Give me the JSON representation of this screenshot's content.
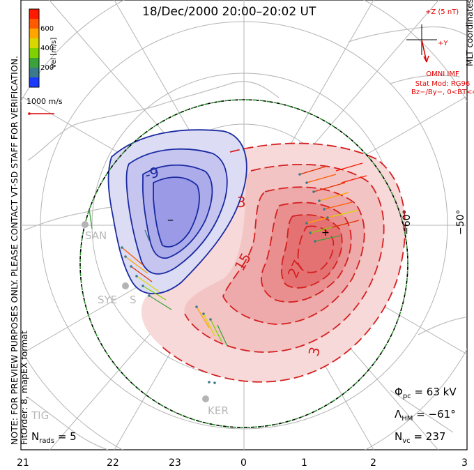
{
  "title": "18/Dec/2000 20:00–20:02 UT",
  "coords_label": "MLT coordinates",
  "preview_note_line1": "NOTE: FOR PREVIEW PURPOSES ONLY. PLEASE CONTACT VT-SD STAFF FOR VERIFICATION.",
  "preview_note_line2": "FitOrder: 8, mapEX format",
  "colorbar": {
    "label": "Vel [m/s]",
    "ticks": [
      "600",
      "400",
      "200"
    ],
    "colors": [
      "#ff1a00",
      "#ff5a00",
      "#ffa500",
      "#d8d800",
      "#7fd200",
      "#3aa23a",
      "#3a7a8a",
      "#1a3aff"
    ]
  },
  "vector_scale_label": "1000 m/s",
  "imf": {
    "z_label": "+Z (5 nT)",
    "y_label": "+Y",
    "source": "OMNI IMF",
    "stat_mod": "Stat Mod: RG96",
    "condition": "Bz−/By−, 0<BT<4",
    "color": "#e00000"
  },
  "contours": {
    "negative_labels": [
      "-9"
    ],
    "positive_labels": [
      "3",
      "15",
      "27",
      "3"
    ],
    "negative_color": "#1a2aa0",
    "positive_color": "#d42020",
    "min_marker": "–",
    "max_marker": "+"
  },
  "latitude_labels": [
    "−60°",
    "−50°"
  ],
  "sites": [
    "SAN",
    "SYE",
    "S",
    "KER",
    "TIG"
  ],
  "x_ticks": [
    "21",
    "22",
    "23",
    "0",
    "1",
    "2",
    "3"
  ],
  "stats": {
    "phi_pc_symbol": "Φ",
    "phi_pc_sub": "pc",
    "phi_pc_value": "= 63 kV",
    "lambda_hm_symbol": "Λ",
    "lambda_hm_sub": "HM",
    "lambda_hm_value": "= −61°",
    "n_vc_symbol": "N",
    "n_vc_sub": "vc",
    "n_vc_value": "= 237",
    "n_rads_symbol": "N",
    "n_rads_sub": "rads",
    "n_rads_value": "= 5"
  }
}
